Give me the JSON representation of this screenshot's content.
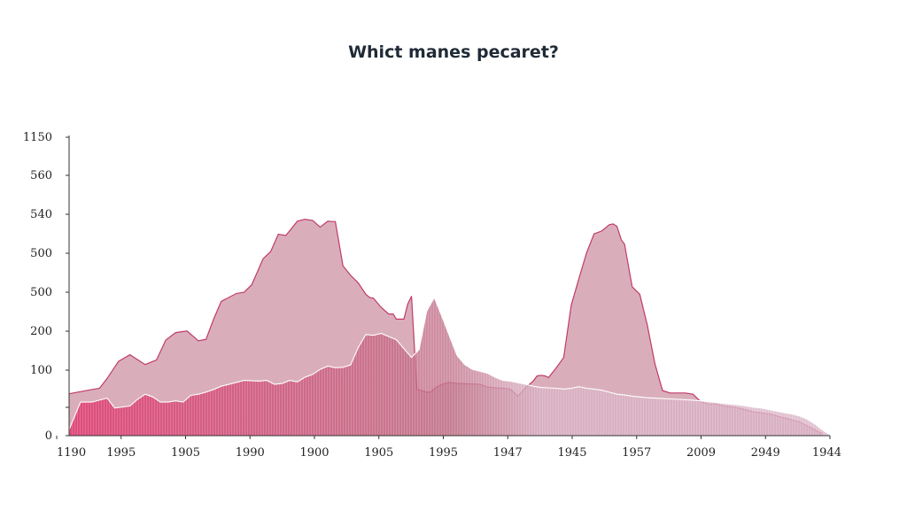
{
  "chart_data": {
    "type": "area",
    "title": "Whict manes pecaret?",
    "xlabel": "",
    "ylabel": "",
    "grid": false,
    "y_tick_labels": [
      "1150",
      "560",
      "540",
      "500",
      "500",
      "200",
      "100",
      "0"
    ],
    "x_tick_labels": [
      "1190",
      "1995",
      "1905",
      "1990",
      "1900",
      "1905",
      "1995",
      "1947",
      "1945",
      "1957",
      "2009",
      "2949",
      "1944"
    ],
    "x_range": [
      0,
      100
    ],
    "y_range": [
      0,
      7.6
    ],
    "colors": {
      "back_fill": "#d5a5b3",
      "back_stroke": "#c23a6a",
      "front_fill_start": "#e0306a",
      "front_fill_mid": "#c07088",
      "front_fill_end": "#d9b2c4",
      "front_stroke": "#ffffff",
      "axis": "#333333"
    },
    "series": [
      {
        "x": [
          0,
          2.5,
          4,
          5,
          6.5,
          8,
          10,
          11.5,
          12.7,
          14,
          15.5,
          17,
          18,
          19,
          20,
          22,
          23,
          24,
          25.5,
          26.5,
          27.5,
          28.5,
          30,
          31,
          32,
          33,
          34,
          34.5,
          35,
          36,
          37,
          38,
          39,
          39.5,
          40,
          41,
          42,
          42.6,
          43,
          44,
          44.5,
          45,
          45.7,
          47,
          47.5,
          48,
          49,
          50,
          51,
          53,
          54,
          55,
          56,
          57,
          58,
          59,
          60,
          61,
          61.5,
          62,
          62.6,
          63,
          64,
          65,
          66,
          67,
          68,
          69,
          70,
          71,
          71.5,
          72,
          72.6,
          73,
          74,
          75,
          76,
          77,
          78,
          79,
          80,
          81,
          82,
          83,
          84,
          85,
          86,
          88,
          89,
          90,
          92,
          93,
          94,
          96,
          99
        ],
        "y": [
          1.06,
          1.15,
          1.2,
          1.45,
          1.88,
          2.05,
          1.8,
          1.92,
          2.42,
          2.61,
          2.65,
          2.4,
          2.44,
          2.95,
          3.4,
          3.6,
          3.63,
          3.82,
          4.48,
          4.66,
          5.1,
          5.07,
          5.43,
          5.48,
          5.45,
          5.28,
          5.43,
          5.42,
          5.42,
          4.3,
          4.06,
          3.87,
          3.58,
          3.5,
          3.48,
          3.25,
          3.08,
          3.08,
          2.95,
          2.95,
          3.33,
          3.53,
          1.18,
          1.1,
          1.1,
          1.19,
          1.3,
          1.35,
          1.32,
          1.31,
          1.3,
          1.23,
          1.21,
          1.2,
          1.18,
          1.0,
          1.22,
          1.38,
          1.51,
          1.53,
          1.51,
          1.47,
          1.71,
          1.98,
          3.3,
          3.97,
          4.62,
          5.11,
          5.18,
          5.34,
          5.36,
          5.3,
          4.95,
          4.85,
          3.77,
          3.58,
          2.8,
          1.82,
          1.14,
          1.08,
          1.08,
          1.08,
          1.05,
          0.86,
          0.8,
          0.8,
          0.75,
          0.7,
          0.65,
          0.6,
          0.55,
          0.5,
          0.45,
          0.35,
          0.05
        ]
      },
      {
        "x": [
          0,
          1.5,
          3,
          5,
          6,
          8,
          9,
          10,
          11,
          12,
          13,
          14,
          15,
          16,
          17,
          18,
          19,
          20,
          22,
          23,
          25,
          26,
          27,
          28,
          29,
          30,
          31,
          32,
          33,
          34,
          35,
          36,
          37,
          38,
          39,
          40,
          41,
          43,
          45,
          46,
          47,
          48,
          49,
          50,
          51,
          52,
          53,
          55,
          56,
          57,
          58,
          59,
          60,
          61,
          62,
          63,
          64,
          65,
          66,
          67,
          68,
          69,
          70,
          71,
          72,
          73,
          74,
          75,
          76,
          77,
          78,
          79,
          80,
          81,
          82,
          83,
          84,
          85,
          86,
          87,
          88,
          89,
          90,
          91,
          92,
          93,
          94,
          95,
          96,
          97,
          98,
          99,
          100
        ],
        "y": [
          0.15,
          0.85,
          0.85,
          0.95,
          0.7,
          0.75,
          0.92,
          1.05,
          0.98,
          0.85,
          0.85,
          0.88,
          0.85,
          1.02,
          1.05,
          1.1,
          1.17,
          1.25,
          1.35,
          1.4,
          1.38,
          1.4,
          1.3,
          1.32,
          1.4,
          1.36,
          1.48,
          1.55,
          1.68,
          1.76,
          1.72,
          1.73,
          1.79,
          2.23,
          2.56,
          2.54,
          2.59,
          2.43,
          1.98,
          2.18,
          3.15,
          3.5,
          3.02,
          2.52,
          2.03,
          1.8,
          1.68,
          1.58,
          1.48,
          1.4,
          1.38,
          1.34,
          1.3,
          1.25,
          1.22,
          1.21,
          1.2,
          1.18,
          1.2,
          1.24,
          1.2,
          1.18,
          1.15,
          1.1,
          1.05,
          1.03,
          1.0,
          0.98,
          0.96,
          0.95,
          0.94,
          0.93,
          0.92,
          0.91,
          0.9,
          0.88,
          0.86,
          0.84,
          0.82,
          0.8,
          0.78,
          0.75,
          0.72,
          0.7,
          0.66,
          0.62,
          0.58,
          0.55,
          0.5,
          0.42,
          0.3,
          0.15,
          0.02
        ]
      }
    ]
  }
}
